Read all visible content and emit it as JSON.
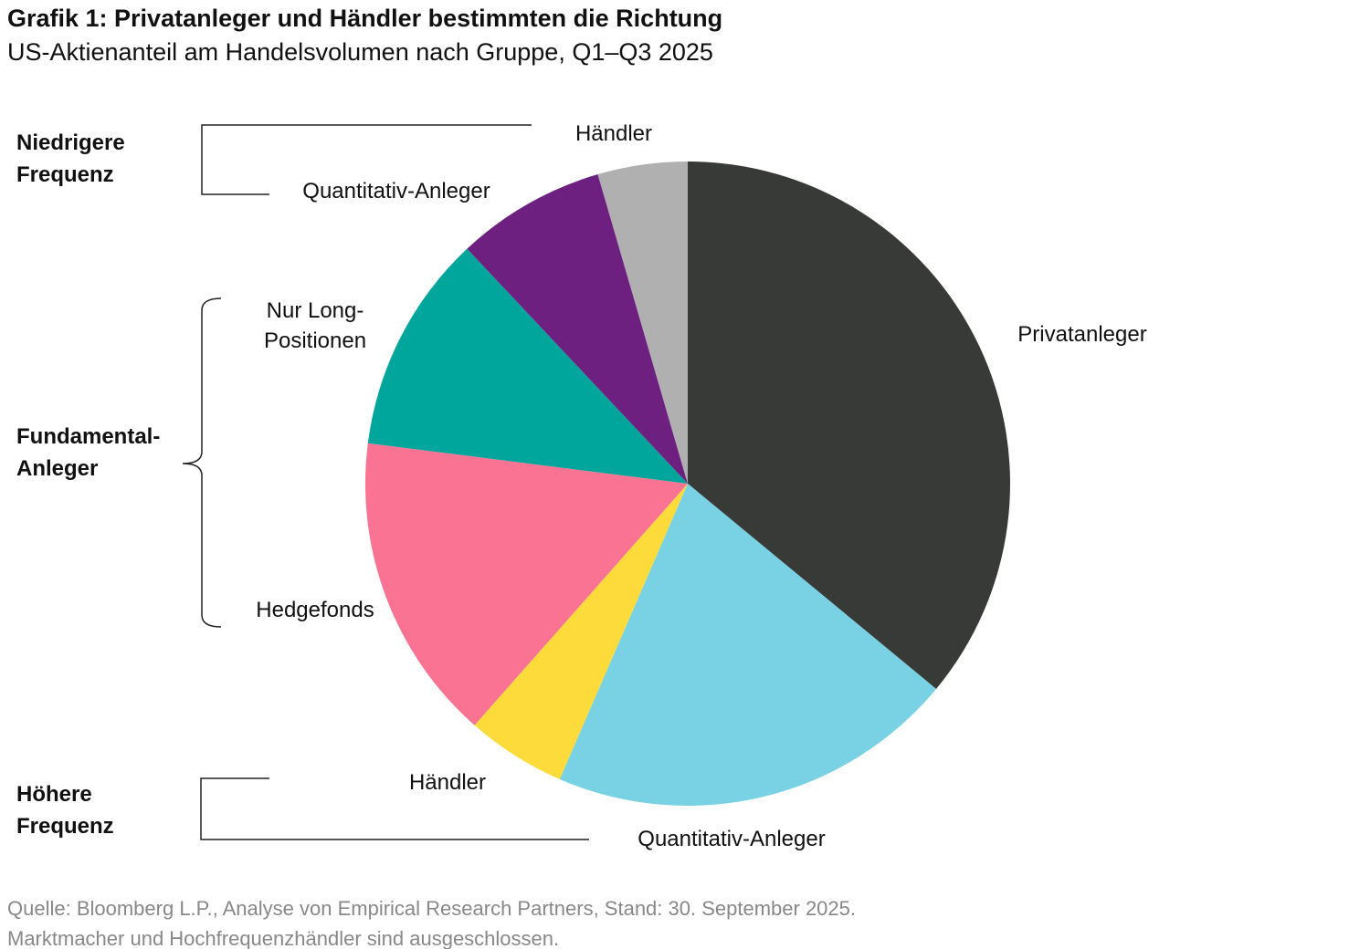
{
  "chart_data": {
    "type": "pie",
    "title": "Grafik 1: Privatanleger und Händler bestimmten die Richtung",
    "subtitle": "US-Aktienanteil am Handelsvolumen nach Gruppe, Q1–Q3 2025",
    "categories": [
      "Privatanleger",
      "Quantitativ-Anleger",
      "Händler",
      "Hedgefonds",
      "Nur Long-\nPositionen",
      "Quantitativ-Anleger",
      "Händler"
    ],
    "values": [
      36,
      20.5,
      5,
      15.5,
      11,
      7.5,
      4.5
    ],
    "colors": [
      "#383a37",
      "#78d2e4",
      "#fddb3a",
      "#fb7393",
      "#00a59b",
      "#6e2080",
      "#b0b0b0"
    ],
    "groups": [
      "Niedrigere\nFrequenz",
      "Fundamental-\nAnleger",
      "Höhere\nFrequenz"
    ],
    "notes": [
      "Quelle: Bloomberg L.P., Analyse von Empirical Research Partners, Stand: 30. September 2025.",
      "Marktmacher und Hochfrequenzhändler sind ausgeschlossen."
    ]
  }
}
